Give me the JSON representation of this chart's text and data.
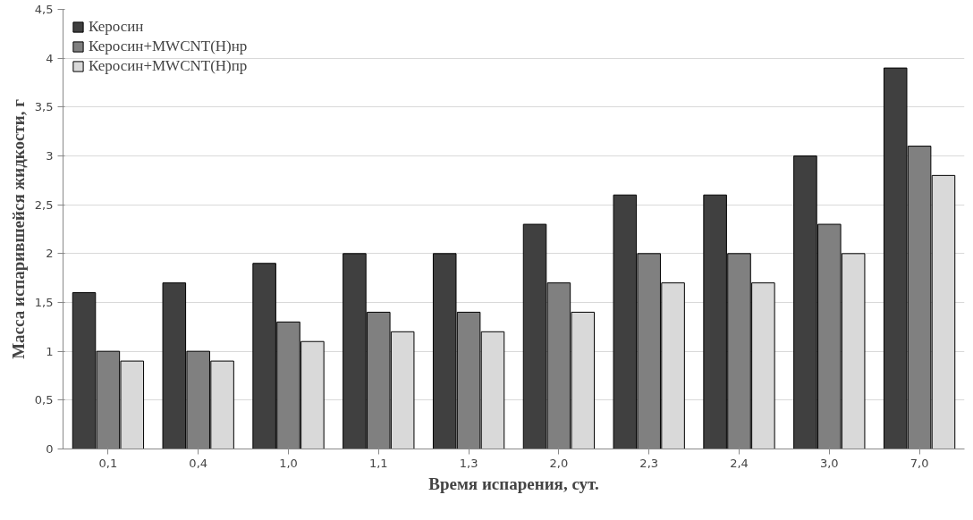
{
  "chart_data": {
    "type": "bar",
    "xlabel": "Время испарения, сут.",
    "ylabel": "Масса испарившейся жидкости, г",
    "categories": [
      "0,1",
      "0,4",
      "1,0",
      "1,1",
      "1,3",
      "2,0",
      "2,3",
      "2,4",
      "3,0",
      "7,0"
    ],
    "series": [
      {
        "name": "Керосин",
        "color": "#404040",
        "values": [
          1.6,
          1.7,
          1.9,
          2.0,
          2.0,
          2.3,
          2.6,
          2.6,
          3.0,
          3.9
        ]
      },
      {
        "name": "Керосин+MWCNT(H)нр",
        "color": "#808080",
        "values": [
          1.0,
          1.0,
          1.3,
          1.4,
          1.4,
          1.7,
          2.0,
          2.0,
          2.3,
          3.1
        ]
      },
      {
        "name": "Керосин+MWCNT(H)пр",
        "color": "#d9d9d9",
        "values": [
          0.9,
          0.9,
          1.1,
          1.2,
          1.2,
          1.4,
          1.7,
          1.7,
          2.0,
          2.8
        ]
      }
    ],
    "ylim": [
      0,
      4.5
    ],
    "yticks": [
      0,
      {
        "value": 0.5,
        "label": "0,5"
      },
      1,
      {
        "value": 1.5,
        "label": "1,5"
      },
      2,
      {
        "value": 2.5,
        "label": "2,5"
      },
      3,
      {
        "value": 3.5,
        "label": "3,5"
      },
      4,
      {
        "value": 4.5,
        "label": "4,5"
      }
    ],
    "grid": "y",
    "legend": "top left"
  }
}
